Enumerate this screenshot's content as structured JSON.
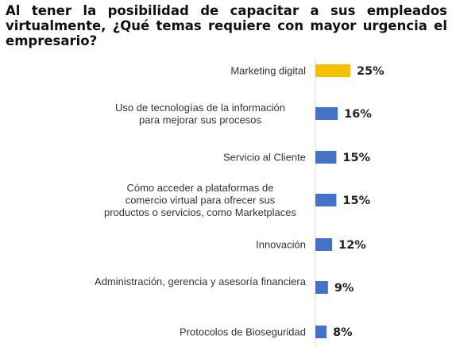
{
  "chart_data": {
    "type": "bar",
    "orientation": "horizontal",
    "title": "Al tener la posibilidad de capacitar a sus empleados virtualmente, ¿Qué temas requiere con mayor urgencia el empresario?",
    "categories": [
      "Marketing digital",
      "Uso de tecnologías de la información para mejorar sus procesos",
      "Servicio al Cliente",
      "Cómo acceder a plataformas de comercio virtual para ofrecer sus productos o servicios, como Marketplaces",
      "Innovación",
      "Administración, gerencia y asesoría financiera",
      "Protocolos de Bioseguridad"
    ],
    "values": [
      25,
      16,
      15,
      15,
      12,
      9,
      8
    ],
    "value_labels": [
      "25%",
      "16%",
      "15%",
      "15%",
      "12%",
      "9%",
      "8%"
    ],
    "unit": "%",
    "xlim": [
      0,
      25
    ],
    "grid": false,
    "legend": "none",
    "colors": {
      "highlight": "#F5C003",
      "default": "#4472C4",
      "axis": "#D9D9D9"
    },
    "highlight_index": 0
  }
}
